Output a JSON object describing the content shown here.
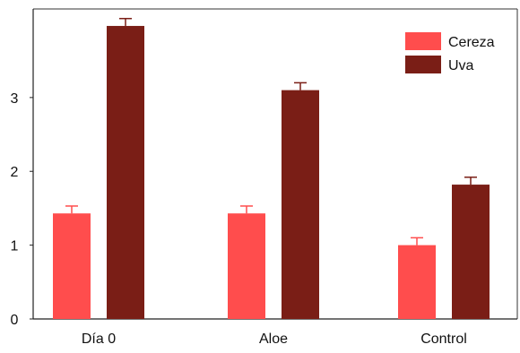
{
  "chart_data": {
    "type": "bar",
    "title": "",
    "xlabel": "",
    "ylabel": "",
    "categories": [
      "Día 0",
      "Aloe",
      "Control"
    ],
    "series": [
      {
        "name": "Cereza",
        "color": "#ff4d4d",
        "values": [
          1.43,
          1.43,
          1.0
        ],
        "errors": [
          0.1,
          0.1,
          0.1
        ]
      },
      {
        "name": "Uva",
        "color": "#7a1e16",
        "values": [
          3.97,
          3.1,
          1.82
        ],
        "errors": [
          0.1,
          0.1,
          0.1
        ]
      }
    ],
    "ylim": [
      0,
      4.2
    ],
    "yticks": [
      "0",
      "1",
      "2",
      "3"
    ],
    "legend_position": "top-right",
    "grid": false
  }
}
